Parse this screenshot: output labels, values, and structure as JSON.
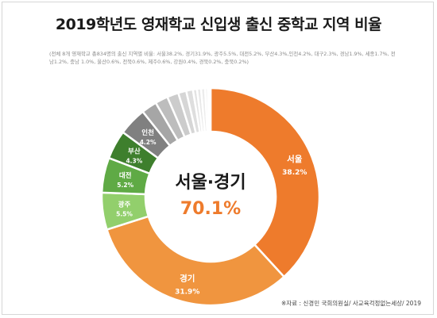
{
  "title": "2019학년도 영재학교 신입생 출신 중학교 지역 비율",
  "note": "(전체 8개 영재학교 총834명의 출신 지역별 비율: 서울38.2%, 경기31.9%, 광주5.5%, 대전5.2%, 부산4.3%,인천4.2%, 대구2.3%, 경남1.9%, 세종1.7%, 전남1.2%, 충남 1.0%, 울산0.6%, 전북0.6%, 제주0.6%, 강원0.4%, 경북0.2%, 충북0.2%)",
  "source": "※자료 : 신경민 국회의원실/ 사교육걱정없는세상/ 2019",
  "chart_data": {
    "type": "pie",
    "title": "2019학년도 영재학교 신입생 출신 중학교 지역 비율",
    "center_label": "서울·경기",
    "center_value": "70.1%",
    "slices": [
      {
        "label": "서울",
        "value": 38.2,
        "display": "38.2%",
        "color": "#ee7b2c",
        "labeled": true
      },
      {
        "label": "경기",
        "value": 31.9,
        "display": "31.9%",
        "color": "#f0953f",
        "labeled": true
      },
      {
        "label": "광주",
        "value": 5.5,
        "display": "5.5%",
        "color": "#92cf6c",
        "labeled": true
      },
      {
        "label": "대전",
        "value": 5.2,
        "display": "5.2%",
        "color": "#5faa45",
        "labeled": true
      },
      {
        "label": "부산",
        "value": 4.3,
        "display": "4.3%",
        "color": "#3e7f2d",
        "labeled": true
      },
      {
        "label": "인천",
        "value": 4.2,
        "display": "4.2%",
        "color": "#808080",
        "labeled": true
      },
      {
        "label": "대구",
        "value": 2.3,
        "color": "#a6a6a6",
        "labeled": false
      },
      {
        "label": "경남",
        "value": 1.9,
        "color": "#bdbdbd",
        "labeled": false
      },
      {
        "label": "세종",
        "value": 1.7,
        "color": "#cccccc",
        "labeled": false
      },
      {
        "label": "전남",
        "value": 1.2,
        "color": "#d6d6d6",
        "labeled": false
      },
      {
        "label": "충남",
        "value": 1.0,
        "color": "#dedede",
        "labeled": false
      },
      {
        "label": "울산",
        "value": 0.6,
        "color": "#e3e3e3",
        "labeled": false
      },
      {
        "label": "전북",
        "value": 0.6,
        "color": "#e8e8e8",
        "labeled": false
      },
      {
        "label": "제주",
        "value": 0.6,
        "color": "#ececec",
        "labeled": false
      },
      {
        "label": "강원",
        "value": 0.4,
        "color": "#efefef",
        "labeled": false
      },
      {
        "label": "경북",
        "value": 0.2,
        "color": "#f2f2f2",
        "labeled": false
      },
      {
        "label": "충북",
        "value": 0.2,
        "color": "#f4f4f4",
        "labeled": false
      }
    ]
  }
}
